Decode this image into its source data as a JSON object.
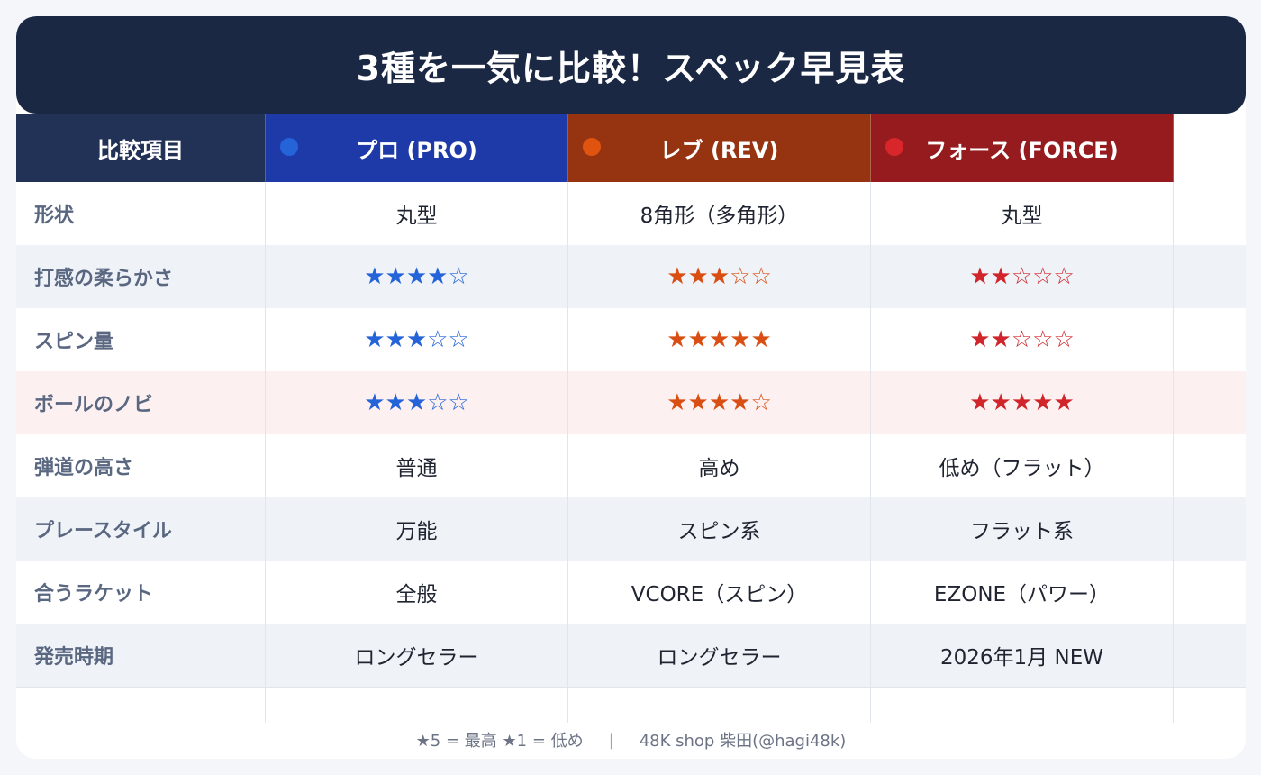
{
  "title": "3種を一気に比較！スペック早見表",
  "header": {
    "label": "比較項目",
    "columns": [
      {
        "name": "プロ (PRO)",
        "color": "#2563d8"
      },
      {
        "name": "レブ (REV)",
        "color": "#e0540f"
      },
      {
        "name": "フォース (FORCE)",
        "color": "#d9262b"
      }
    ]
  },
  "rows": [
    {
      "label": "形状",
      "values": [
        "丸型",
        "8角形（多角形）",
        "丸型"
      ]
    },
    {
      "label": "打感の柔らかさ",
      "values": [
        "★★★★☆",
        "★★★☆☆",
        "★★☆☆☆"
      ]
    },
    {
      "label": "スピン量",
      "values": [
        "★★★☆☆",
        "★★★★★",
        "★★☆☆☆"
      ]
    },
    {
      "label": "ボールのノビ",
      "values": [
        "★★★☆☆",
        "★★★★☆",
        "★★★★★"
      ]
    },
    {
      "label": "弾道の高さ",
      "values": [
        "普通",
        "高め",
        "低め（フラット）"
      ]
    },
    {
      "label": "プレースタイル",
      "values": [
        "万能",
        "スピン系",
        "フラット系"
      ]
    },
    {
      "label": "合うラケット",
      "values": [
        "全般",
        "VCORE（スピン）",
        "EZONE（パワー）"
      ]
    },
    {
      "label": "発売時期",
      "values": [
        "ロングセラー",
        "ロングセラー",
        "2026年1月  NEW"
      ]
    }
  ],
  "footer": {
    "legend": "★5 = 最高  ★1 = 低め",
    "separator": "|",
    "credit": "48K shop  柴田(@hagi48k)"
  }
}
